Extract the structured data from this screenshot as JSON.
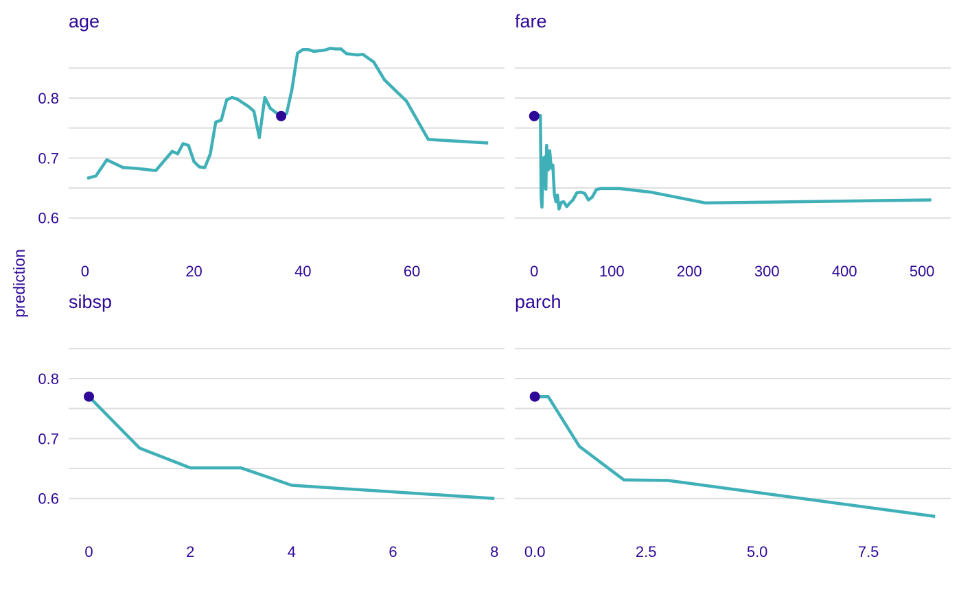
{
  "colors": {
    "line": "#40b0b8",
    "point": "#2e0896",
    "text": "#2e0896",
    "grid": "#dedede"
  },
  "ylabel": "prediction",
  "chart_data": [
    {
      "type": "line",
      "title": "age",
      "xlim": [
        -3,
        77
      ],
      "ylim": [
        0.555,
        0.895
      ],
      "xticks": [
        0,
        20,
        40,
        60
      ],
      "xtick_labels": [
        "0",
        "20",
        "40",
        "60"
      ],
      "yticks": [
        0.6,
        0.7,
        0.8
      ],
      "ytick_labels": [
        "0.6",
        "0.7",
        "0.8"
      ],
      "series": [
        {
          "x": [
            0.4,
            2,
            4,
            7,
            9,
            11,
            13,
            16,
            17,
            18,
            19,
            20,
            21,
            22,
            23,
            24,
            25,
            26,
            27,
            28,
            29,
            30,
            31,
            32,
            33,
            34,
            35,
            36,
            37,
            38,
            39,
            40,
            41,
            42,
            43,
            44,
            45,
            46,
            47,
            48,
            50,
            51,
            53,
            55,
            59,
            63,
            74
          ],
          "y": [
            0.666,
            0.67,
            0.697,
            0.684,
            0.683,
            0.681,
            0.679,
            0.711,
            0.707,
            0.724,
            0.721,
            0.694,
            0.685,
            0.684,
            0.707,
            0.76,
            0.763,
            0.797,
            0.801,
            0.798,
            0.792,
            0.786,
            0.778,
            0.734,
            0.801,
            0.783,
            0.776,
            0.77,
            0.774,
            0.815,
            0.875,
            0.881,
            0.881,
            0.878,
            0.879,
            0.88,
            0.883,
            0.882,
            0.882,
            0.874,
            0.872,
            0.873,
            0.86,
            0.83,
            0.795,
            0.731,
            0.725
          ]
        }
      ],
      "observation": {
        "x": 36,
        "y": 0.77
      }
    },
    {
      "type": "line",
      "title": "fare",
      "xlim": [
        -25,
        537
      ],
      "ylim": [
        0.555,
        0.895
      ],
      "xticks": [
        0,
        100,
        200,
        300,
        400,
        500
      ],
      "xtick_labels": [
        "0",
        "100",
        "200",
        "300",
        "400",
        "500"
      ],
      "yticks": [
        0.6,
        0.7,
        0.8
      ],
      "ytick_labels": [
        "",
        "",
        ""
      ],
      "series": [
        {
          "x": [
            0,
            8,
            9,
            10,
            12,
            14,
            15,
            16,
            18,
            20,
            22,
            24,
            26,
            28,
            30,
            32,
            35,
            38,
            42,
            46,
            50,
            55,
            60,
            65,
            70,
            75,
            80,
            85,
            90,
            110,
            150,
            221,
            512
          ],
          "y": [
            0.771,
            0.771,
            0.635,
            0.618,
            0.7,
            0.702,
            0.648,
            0.721,
            0.68,
            0.712,
            0.683,
            0.688,
            0.64,
            0.627,
            0.638,
            0.615,
            0.626,
            0.627,
            0.619,
            0.625,
            0.63,
            0.642,
            0.643,
            0.641,
            0.63,
            0.635,
            0.647,
            0.649,
            0.649,
            0.649,
            0.643,
            0.625,
            0.63
          ]
        }
      ],
      "observation": {
        "x": 0,
        "y": 0.77
      }
    },
    {
      "type": "line",
      "title": "sibsp",
      "xlim": [
        -0.4,
        8.2
      ],
      "ylim": [
        0.555,
        0.895
      ],
      "xticks": [
        0,
        2,
        4,
        6,
        8
      ],
      "xtick_labels": [
        "0",
        "2",
        "4",
        "6",
        "8"
      ],
      "yticks": [
        0.6,
        0.7,
        0.8
      ],
      "ytick_labels": [
        "0.6",
        "0.7",
        "0.8"
      ],
      "series": [
        {
          "x": [
            0,
            1,
            2,
            3,
            4,
            8
          ],
          "y": [
            0.77,
            0.684,
            0.651,
            0.651,
            0.622,
            0.6
          ]
        }
      ],
      "observation": {
        "x": 0,
        "y": 0.77
      }
    },
    {
      "type": "line",
      "title": "parch",
      "xlim": [
        -0.45,
        9.35
      ],
      "ylim": [
        0.555,
        0.895
      ],
      "xticks": [
        0,
        2.5,
        5,
        7.5
      ],
      "xtick_labels": [
        "0.0",
        "2.5",
        "5.0",
        "7.5"
      ],
      "yticks": [
        0.6,
        0.7,
        0.8
      ],
      "ytick_labels": [
        "",
        "",
        ""
      ],
      "series": [
        {
          "x": [
            0,
            0.3,
            1,
            2,
            3,
            9
          ],
          "y": [
            0.77,
            0.77,
            0.687,
            0.631,
            0.63,
            0.57
          ]
        }
      ],
      "observation": {
        "x": 0,
        "y": 0.77
      }
    }
  ]
}
